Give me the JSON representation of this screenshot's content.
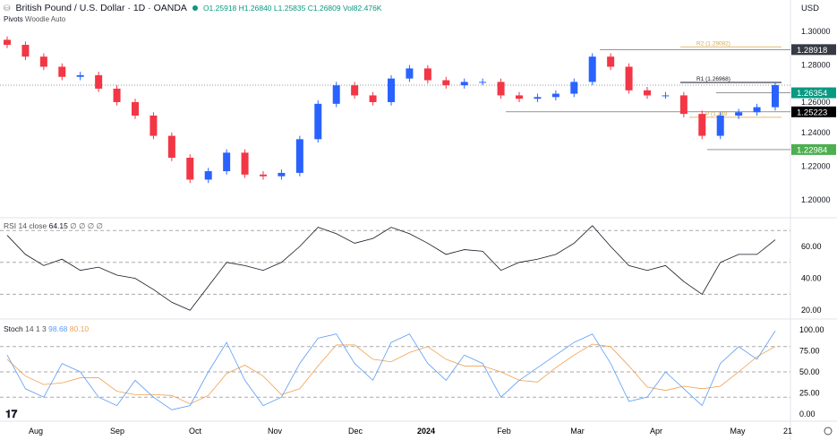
{
  "header": {
    "symbol": "British Pound / U.S. Dollar · 1D · OANDA",
    "open": "O1.25918",
    "high": "H1.26840",
    "low": "L1.25835",
    "close": "C1.26809",
    "volume": "Vol82.476K",
    "indicator": "Pivots",
    "indicator_params": "Woodie Auto",
    "currency": "USD",
    "logo": "TV"
  },
  "colors": {
    "up": "#2962ff",
    "down": "#f23645",
    "pivot": "#d4a84b",
    "rsi": "#131722",
    "stoch_k": "#5b9cf6",
    "stoch_d": "#f0a050",
    "green": "#4caf50",
    "teal": "#089981"
  },
  "chart_data": [
    {
      "type": "candlestick",
      "ylim": [
        1.19,
        1.31
      ],
      "yticks": [
        "1.30000",
        "1.28000",
        "1.26000",
        "1.24000",
        "1.22000",
        "1.20000"
      ],
      "xticks": [
        "Aug",
        "Sep",
        "Oct",
        "Nov",
        "Dec",
        "2024",
        "Feb",
        "Mar",
        "Apr",
        "May",
        "21"
      ],
      "closes": [
        1.292,
        1.285,
        1.279,
        1.273,
        1.274,
        1.266,
        1.258,
        1.25,
        1.238,
        1.225,
        1.212,
        1.217,
        1.228,
        1.215,
        1.214,
        1.216,
        1.236,
        1.257,
        1.268,
        1.262,
        1.258,
        1.272,
        1.278,
        1.271,
        1.268,
        1.27,
        1.27,
        1.262,
        1.26,
        1.261,
        1.263,
        1.27,
        1.285,
        1.279,
        1.265,
        1.262,
        1.262,
        1.251,
        1.238,
        1.25,
        1.252,
        1.255,
        1.26809
      ],
      "levels": [
        {
          "label": "R2 (1.29082)",
          "value": 1.29082,
          "kind": "pivot"
        },
        {
          "label": "R1 (1.26968)",
          "value": 1.26968,
          "kind": "pivot"
        },
        {
          "label": "P (1.249",
          "value": 1.249,
          "kind": "pivot"
        }
      ],
      "price_tags": [
        {
          "text": "1.28918",
          "value": 1.28918,
          "bg": "#363a45"
        },
        {
          "text": "1.26354",
          "value": 1.26354,
          "bg": "#089981"
        },
        {
          "text": "1.25223",
          "value": 1.25223,
          "bg": "#000000"
        },
        {
          "text": "1.22984",
          "value": 1.22984,
          "bg": "#4caf50"
        }
      ]
    },
    {
      "type": "line",
      "title": "RSI",
      "params": "14 close",
      "value": "64.15",
      "extra": "∅ ∅ ∅ ∅",
      "ylim": [
        15,
        80
      ],
      "yticks": [
        "60.00",
        "40.00",
        "20.00"
      ],
      "bands": [
        70,
        50,
        30
      ],
      "values": [
        67,
        55,
        48,
        52,
        45,
        47,
        42,
        40,
        33,
        25,
        20,
        35,
        50,
        48,
        45,
        50,
        60,
        72,
        68,
        62,
        65,
        72,
        68,
        62,
        55,
        58,
        57,
        45,
        50,
        52,
        55,
        62,
        73,
        60,
        48,
        45,
        48,
        38,
        30,
        50,
        55,
        55,
        64.15
      ]
    },
    {
      "type": "line",
      "title": "Stoch",
      "params": "14 1 3",
      "k_value": "98.68",
      "d_value": "80.10",
      "ylim": [
        -5,
        105
      ],
      "yticks": [
        "100.00",
        "75.00",
        "50.00",
        "25.00",
        "0.00"
      ],
      "bands": [
        80,
        50,
        20
      ],
      "k": [
        70,
        30,
        20,
        60,
        50,
        20,
        10,
        40,
        20,
        5,
        10,
        50,
        85,
        40,
        10,
        20,
        60,
        90,
        95,
        60,
        40,
        85,
        95,
        60,
        40,
        70,
        60,
        20,
        40,
        55,
        70,
        85,
        95,
        60,
        15,
        20,
        50,
        30,
        10,
        60,
        80,
        65,
        98.68
      ],
      "d": [
        65,
        45,
        35,
        37,
        43,
        43,
        27,
        23,
        23,
        22,
        12,
        22,
        48,
        58,
        45,
        23,
        30,
        57,
        82,
        82,
        65,
        62,
        73,
        80,
        65,
        57,
        57,
        50,
        40,
        38,
        55,
        70,
        83,
        80,
        57,
        32,
        28,
        33,
        30,
        33,
        50,
        68,
        80.1
      ]
    }
  ]
}
